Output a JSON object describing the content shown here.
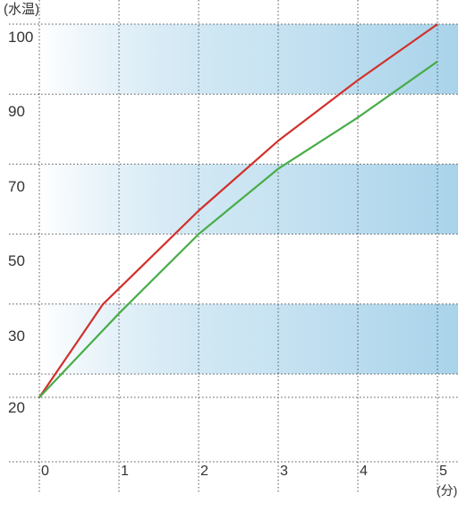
{
  "chart_data": {
    "type": "line",
    "ylabel": "(水温)",
    "xlabel": "(分)",
    "x_ticks": [
      "0",
      "1",
      "2",
      "3",
      "4",
      "5"
    ],
    "y_ticks": [
      "20",
      "30",
      "50",
      "70",
      "90",
      "100"
    ],
    "xlim": [
      0,
      5
    ],
    "ylim": [
      20,
      100
    ],
    "grid": true,
    "bands": [
      [
        25,
        40
      ],
      [
        55,
        70
      ],
      [
        85,
        100
      ]
    ],
    "series": [
      {
        "color": "#d2302b",
        "x": [
          0,
          0.8,
          2,
          3,
          4,
          5
        ],
        "y": [
          20,
          40,
          60,
          75,
          88,
          100
        ]
      },
      {
        "color": "#48ad48",
        "x": [
          0,
          1,
          2,
          3,
          4,
          5
        ],
        "y": [
          20,
          38,
          55,
          69,
          80,
          92
        ]
      }
    ],
    "colors": {
      "band_start": "#ffffff",
      "band_end": "#a9d3ea",
      "grid": "#555555"
    }
  }
}
